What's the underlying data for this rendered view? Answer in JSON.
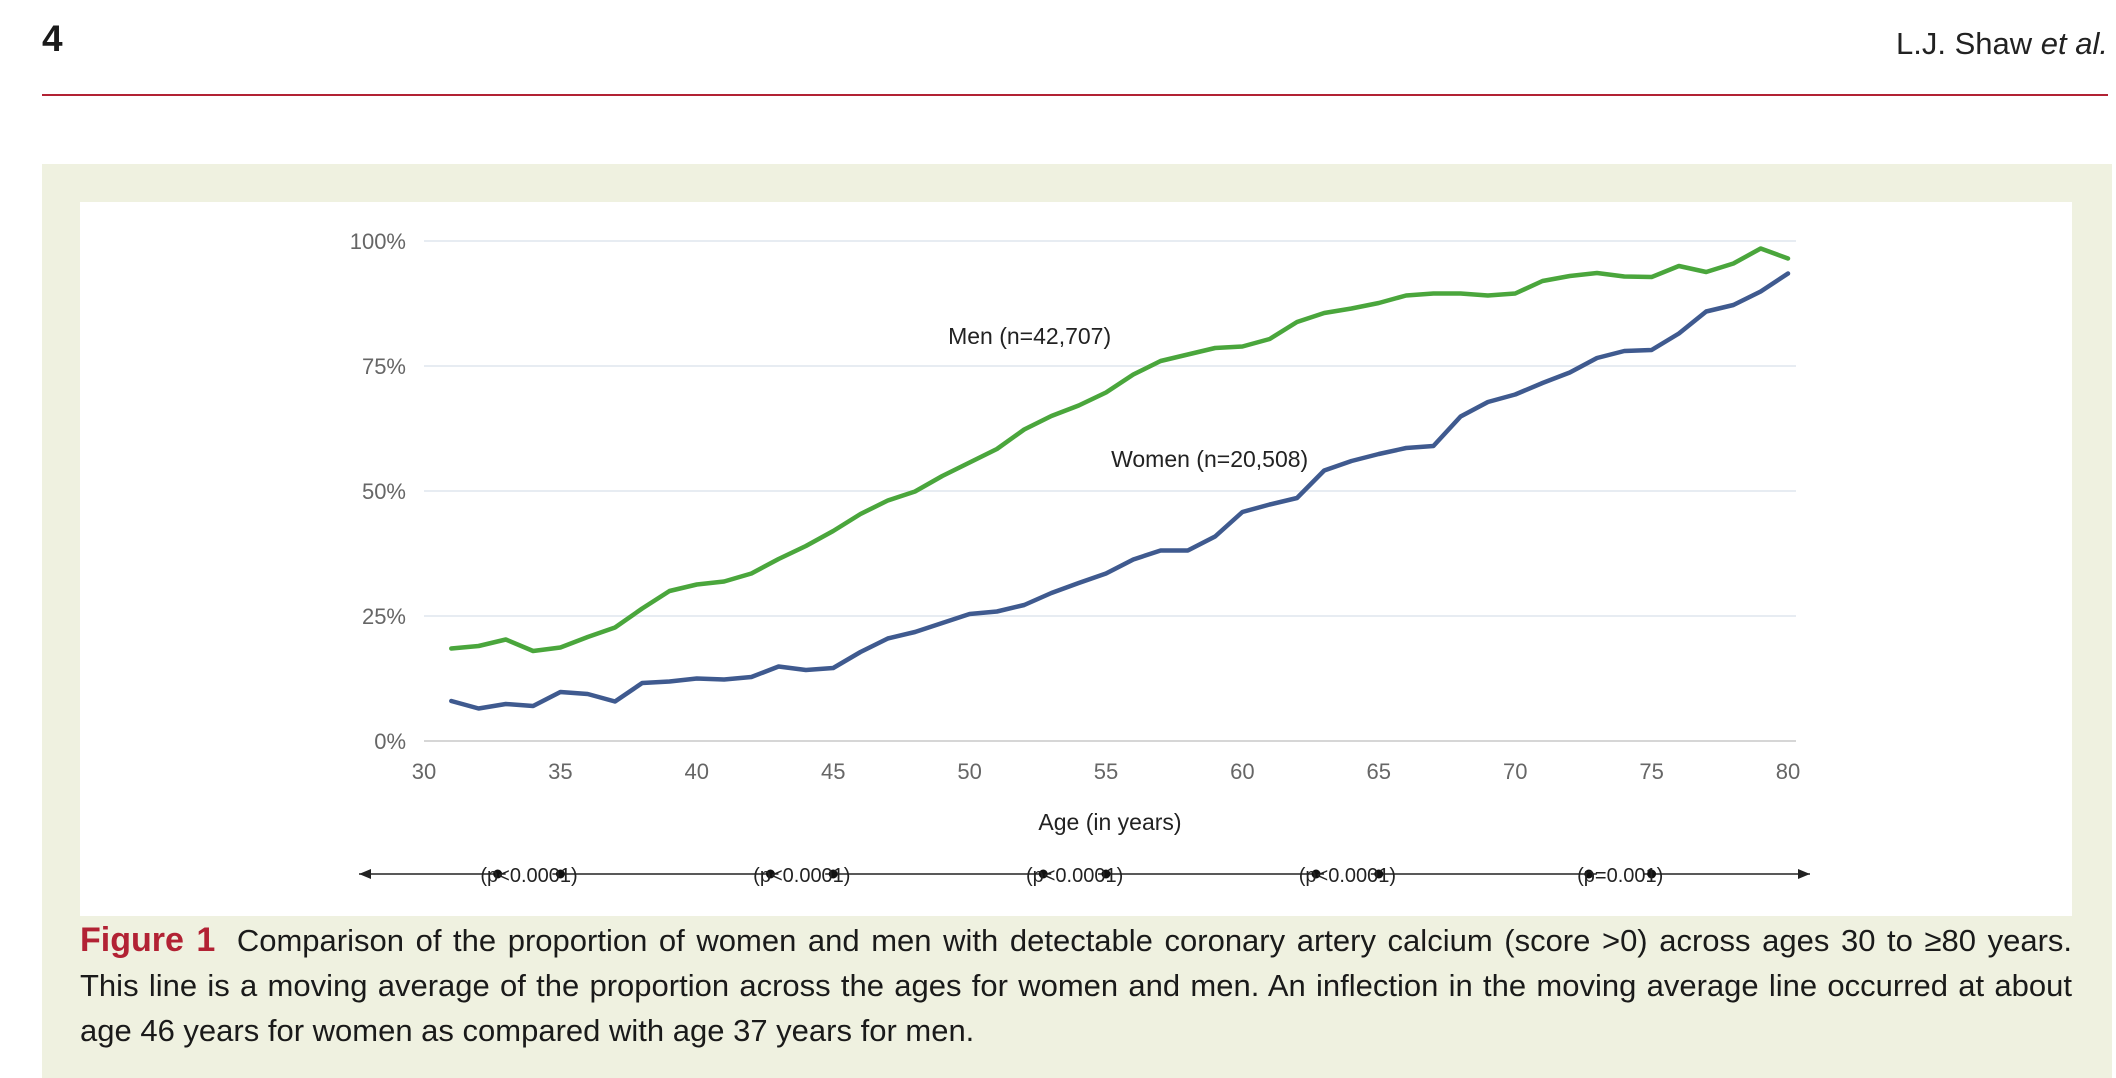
{
  "header": {
    "page_number": "4",
    "authors": "L.J. Shaw",
    "authors_suffix": "et al."
  },
  "colors": {
    "rule": "#b22234",
    "figure_background": "#eff1e0",
    "men_line": "#4aa63c",
    "women_line": "#3f5a8f",
    "caption_label": "#b22234"
  },
  "caption": {
    "label": "Figure 1",
    "text": "Comparison of the proportion of women and men with detectable coronary artery calcium (score >0) across ages 30 to ≥80 years. This line is a moving average of the proportion across the ages for women and men. An inflection in the moving average line occurred at about age 46 years for women as compared with age 37 years for men."
  },
  "chart_data": {
    "type": "line",
    "title": "",
    "xlabel": "Age (in years)",
    "ylabel": "",
    "xlim": [
      30,
      80
    ],
    "ylim": [
      0,
      100
    ],
    "x_ticks": [
      "30",
      "35",
      "40",
      "45",
      "50",
      "55",
      "60",
      "65",
      "70",
      "75",
      "80"
    ],
    "y_ticks": [
      "0%",
      "25%",
      "50%",
      "75%",
      "100%"
    ],
    "grid": true,
    "x": [
      31,
      32,
      33,
      34,
      35,
      36,
      37,
      38,
      39,
      40,
      41,
      42,
      43,
      44,
      45,
      46,
      47,
      48,
      49,
      50,
      51,
      52,
      53,
      54,
      55,
      56,
      57,
      58,
      59,
      60,
      61,
      62,
      63,
      64,
      65,
      66,
      67,
      68,
      69,
      70,
      71,
      72,
      73,
      74,
      75,
      76,
      77,
      78,
      79,
      80
    ],
    "series": [
      {
        "name": "Men (n=42,707)",
        "color": "#4aa63c",
        "values": [
          18.5,
          19,
          20.3,
          18,
          18.7,
          20.8,
          22.7,
          26.5,
          30,
          31.3,
          31.9,
          33.5,
          36.4,
          39,
          42,
          45.4,
          48.1,
          49.9,
          53,
          55.7,
          58.4,
          62.3,
          65,
          67.1,
          69.7,
          73.3,
          76,
          77.3,
          78.6,
          78.9,
          80.4,
          83.8,
          85.6,
          86.5,
          87.6,
          89.1,
          89.5,
          89.5,
          89.1,
          89.5,
          92,
          93,
          93.6,
          92.9,
          92.8,
          95,
          93.8,
          95.5,
          98.5,
          96.5
        ]
      },
      {
        "name": "Women (n=20,508)",
        "color": "#3f5a8f",
        "values": [
          8,
          6.5,
          7.4,
          7,
          9.8,
          9.4,
          7.9,
          11.6,
          11.9,
          12.5,
          12.3,
          12.8,
          14.9,
          14.2,
          14.6,
          17.8,
          20.5,
          21.8,
          23.6,
          25.4,
          25.9,
          27.2,
          29.6,
          31.6,
          33.5,
          36.3,
          38.1,
          38.1,
          40.9,
          45.8,
          47.3,
          48.6,
          54.1,
          56,
          57.4,
          58.6,
          59,
          64.9,
          67.8,
          69.3,
          71.6,
          73.7,
          76.6,
          78,
          78.2,
          81.5,
          85.9,
          87.2,
          89.9,
          93.5
        ]
      }
    ],
    "series_labels": [
      {
        "text": "Men (n=42,707)",
        "x": 52.2,
        "y": 79.4
      },
      {
        "text": "Women (n=20,508)",
        "x": 58.8,
        "y": 54.8
      }
    ],
    "significance": {
      "segments": [
        {
          "label": "(p<0.0001)",
          "from": 30,
          "to": 35
        },
        {
          "label": "(p<0.0001)",
          "from": 40,
          "to": 45
        },
        {
          "label": "(p<0.0001)",
          "from": 50,
          "to": 55
        },
        {
          "label": "(p<0.0001)",
          "from": 60,
          "to": 65
        },
        {
          "label": "(p=0.001)",
          "from": 70,
          "to": 75
        }
      ]
    }
  }
}
